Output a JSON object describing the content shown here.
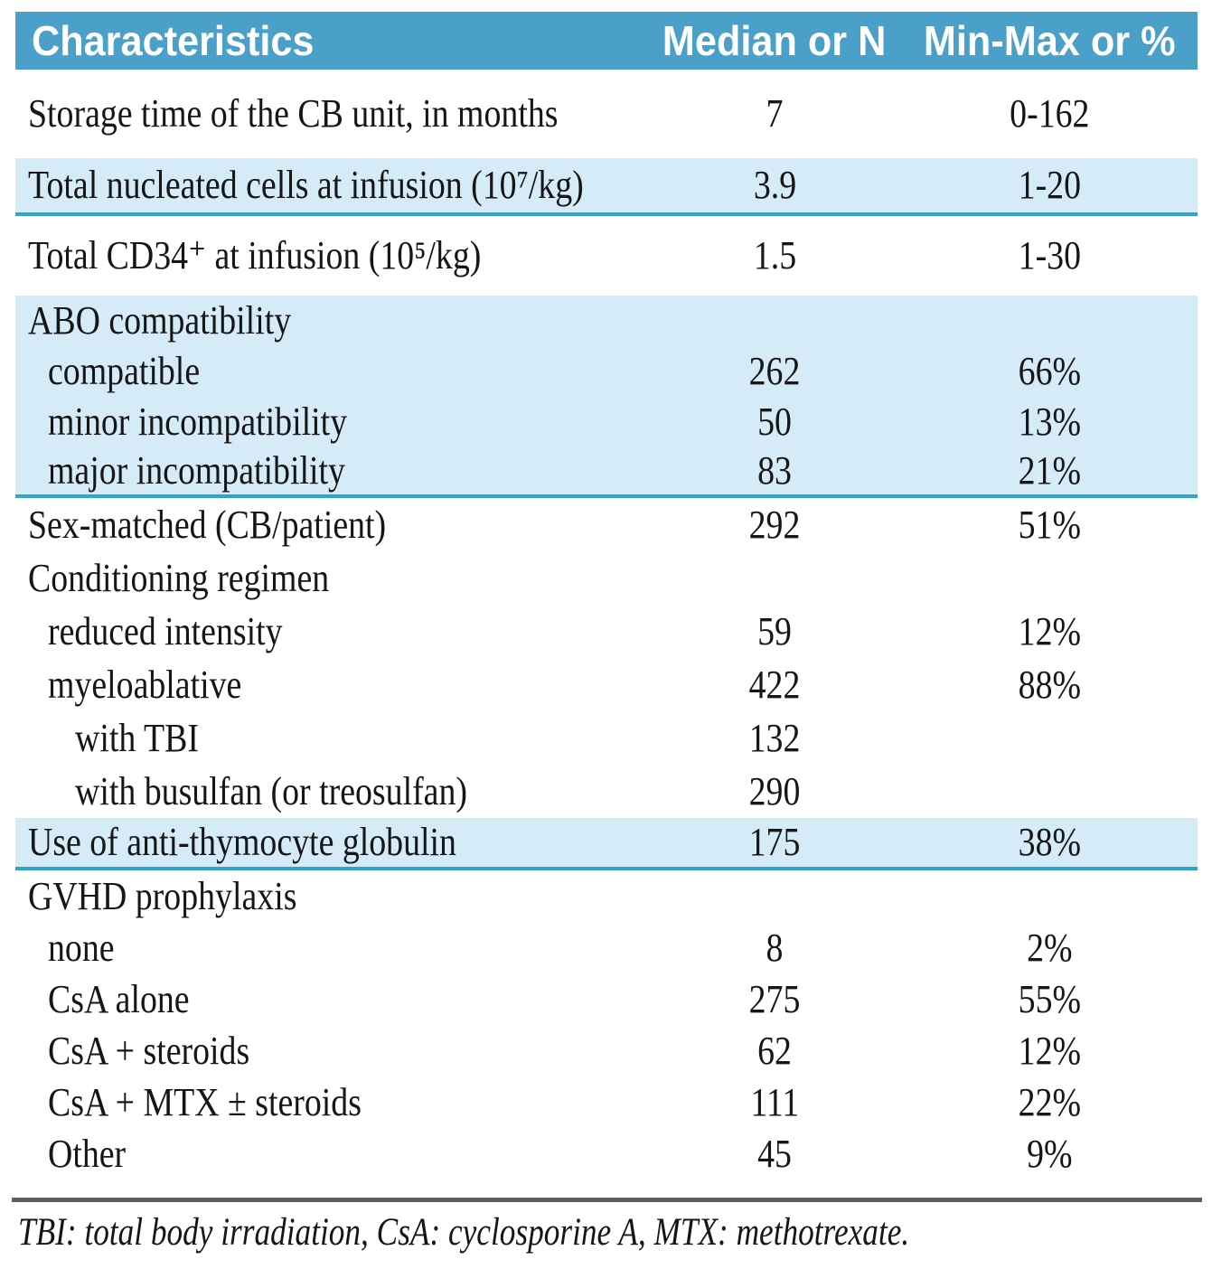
{
  "header": {
    "characteristics": "Characteristics",
    "median": "Median or N",
    "minmax": "Min-Max or %"
  },
  "rows": [
    {
      "label": "Storage time of the CB unit, in months",
      "median": "7",
      "minmax": "0-162"
    },
    {
      "label": "Total nucleated cells at infusion (10⁷/kg)",
      "median": "3.9",
      "minmax": "1-20"
    },
    {
      "label": "Total CD34⁺ at infusion (10⁵/kg)",
      "median": "1.5",
      "minmax": "1-30"
    },
    {
      "label": "ABO compatibility",
      "median": "",
      "minmax": ""
    },
    {
      "label": "compatible",
      "median": "262",
      "minmax": "66%"
    },
    {
      "label": "minor incompatibility",
      "median": "50",
      "minmax": "13%"
    },
    {
      "label": "major incompatibility",
      "median": "83",
      "minmax": "21%"
    },
    {
      "label": "Sex-matched (CB/patient)",
      "median": "292",
      "minmax": "51%"
    },
    {
      "label": "Conditioning regimen",
      "median": "",
      "minmax": ""
    },
    {
      "label": "reduced intensity",
      "median": "59",
      "minmax": "12%"
    },
    {
      "label": "myeloablative",
      "median": "422",
      "minmax": "88%"
    },
    {
      "label": "with TBI",
      "median": "132",
      "minmax": ""
    },
    {
      "label": "with busulfan (or treosulfan)",
      "median": "290",
      "minmax": ""
    },
    {
      "label": "Use of anti-thymocyte globulin",
      "median": "175",
      "minmax": "38%"
    },
    {
      "label": "GVHD prophylaxis",
      "median": "",
      "minmax": ""
    },
    {
      "label": "none",
      "median": "8",
      "minmax": "2%"
    },
    {
      "label": "CsA alone",
      "median": "275",
      "minmax": "55%"
    },
    {
      "label": "CsA + steroids",
      "median": "62",
      "minmax": "12%"
    },
    {
      "label": "CsA + MTX ± steroids",
      "median": "111",
      "minmax": "22%"
    },
    {
      "label": "Other",
      "median": "45",
      "minmax": "9%"
    }
  ],
  "footnote": "TBI: total body irradiation, CsA: cyclosporine A, MTX: methotrexate.",
  "colors": {
    "header_bg": "#4aa0c8",
    "row_blue": "#d6ebf8",
    "teal_line": "#2fa5c7",
    "rule_gray": "#5e5e5e",
    "text": "#161616"
  }
}
